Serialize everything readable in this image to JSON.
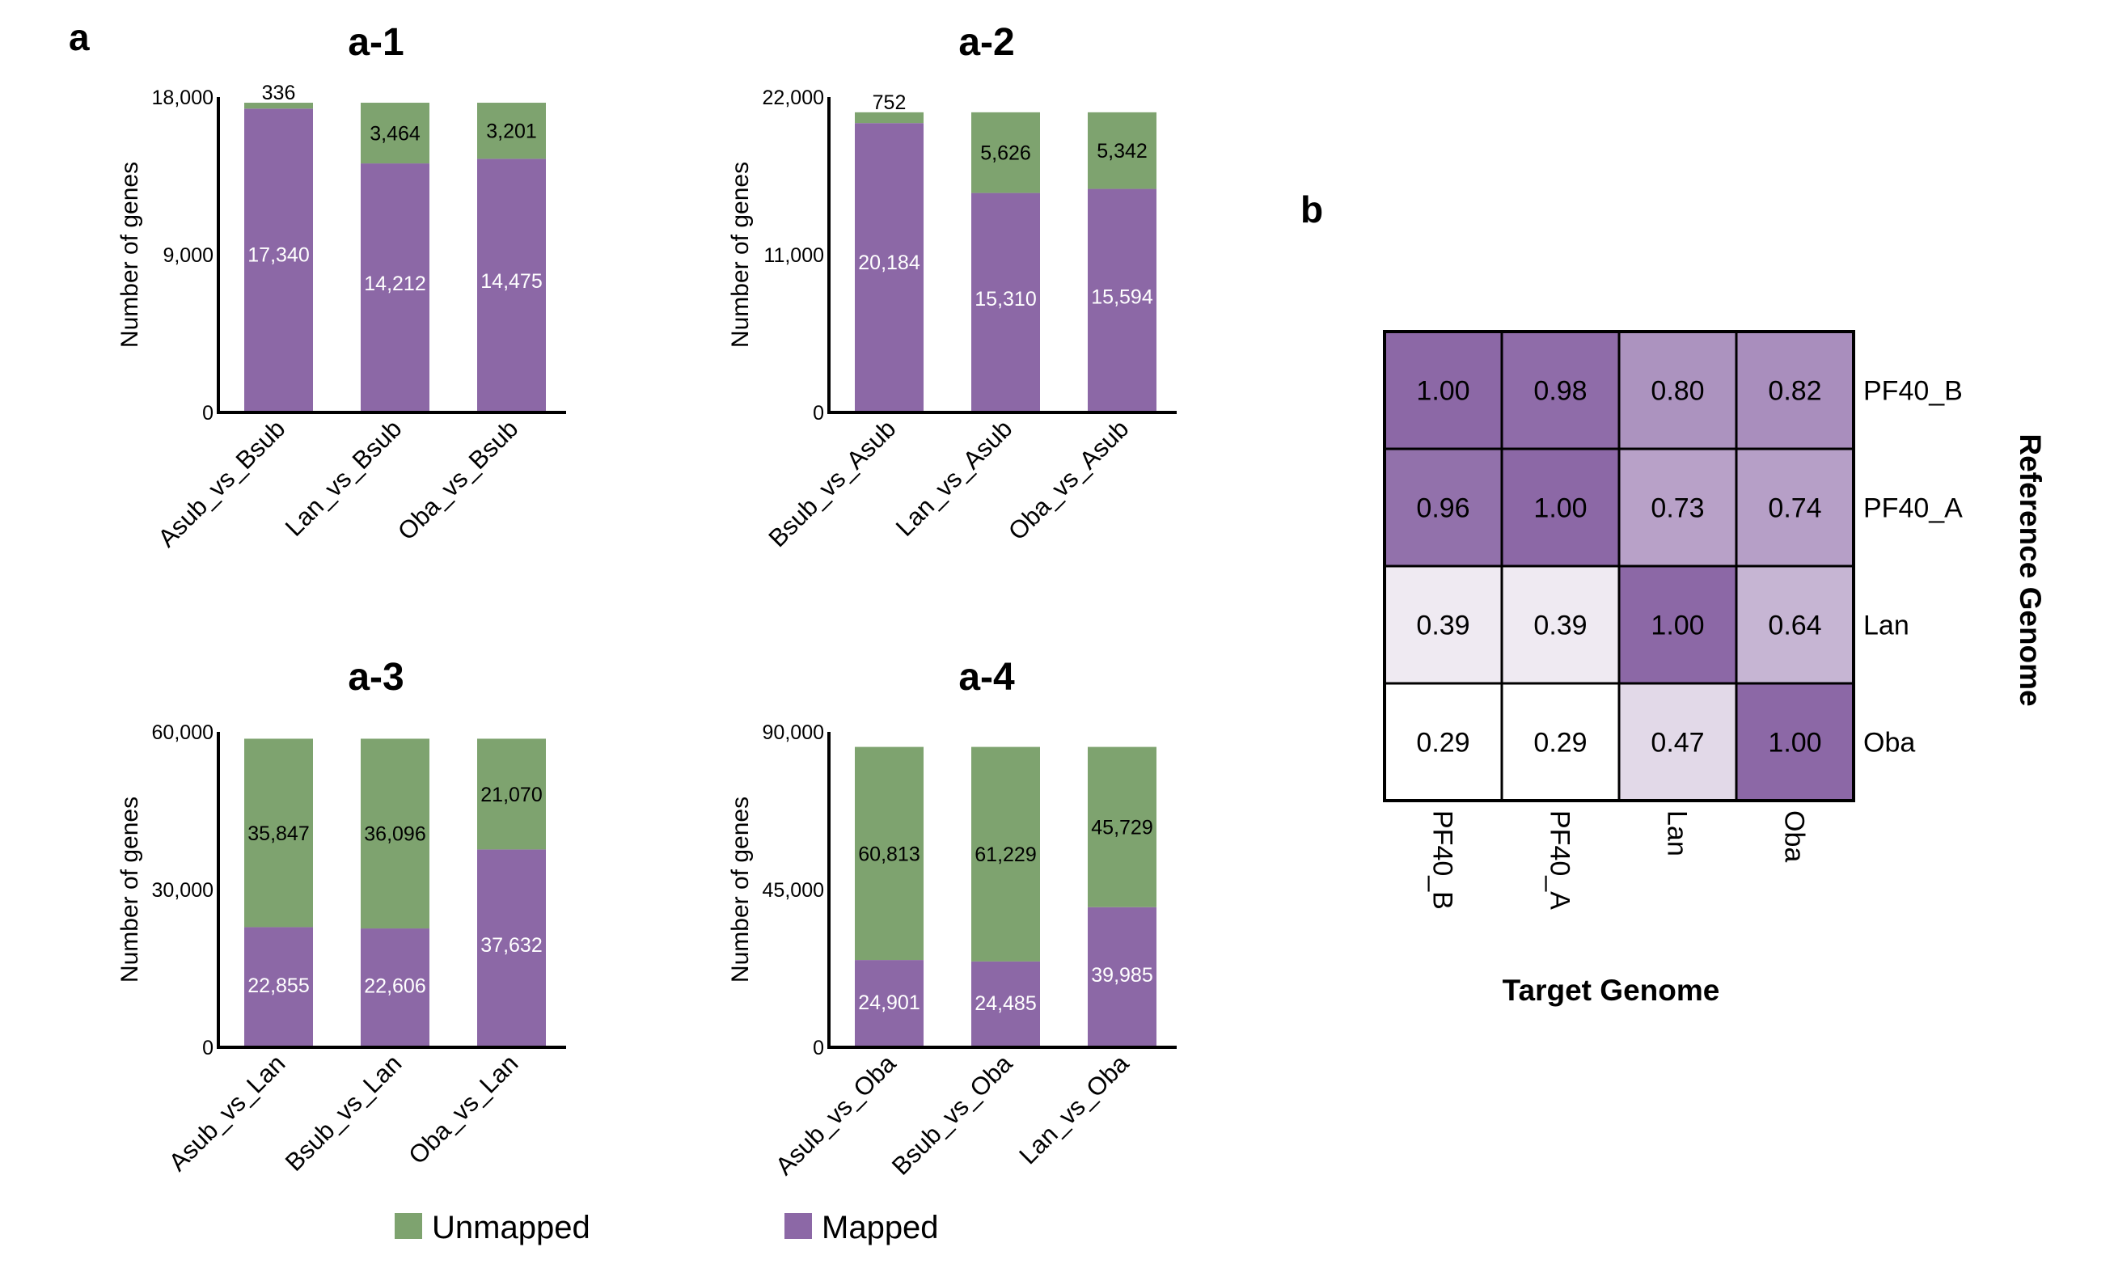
{
  "panel_labels": {
    "a": "a",
    "b": "b"
  },
  "legend": [
    {
      "name": "Unmapped",
      "color": "#7ea36f"
    },
    {
      "name": "Mapped",
      "color": "#8c68a6"
    }
  ],
  "chart_data": [
    {
      "type": "bar",
      "stacked": true,
      "title": "a-1",
      "ylabel": "Number of genes",
      "ylim": [
        0,
        18000
      ],
      "yticks": [
        "0",
        "9,000",
        "18,000"
      ],
      "categories": [
        "Asub_vs_Bsub",
        "Lan_vs_Bsub",
        "Oba_vs_Bsub"
      ],
      "series": [
        {
          "name": "Mapped",
          "values": [
            17340,
            14212,
            14475
          ],
          "labels": [
            "17,340",
            "14,212",
            "14,475"
          ]
        },
        {
          "name": "Unmapped",
          "values": [
            336,
            3464,
            3201
          ],
          "labels": [
            "336",
            "3,464",
            "3,201"
          ]
        }
      ]
    },
    {
      "type": "bar",
      "stacked": true,
      "title": "a-2",
      "ylabel": "Number of genes",
      "ylim": [
        0,
        22000
      ],
      "yticks": [
        "0",
        "11,000",
        "22,000"
      ],
      "categories": [
        "Bsub_vs_Asub",
        "Lan_vs_Asub",
        "Oba_vs_Asub"
      ],
      "series": [
        {
          "name": "Mapped",
          "values": [
            20184,
            15310,
            15594
          ],
          "labels": [
            "20,184",
            "15,310",
            "15,594"
          ]
        },
        {
          "name": "Unmapped",
          "values": [
            752,
            5626,
            5342
          ],
          "labels": [
            "752",
            "5,626",
            "5,342"
          ]
        }
      ]
    },
    {
      "type": "bar",
      "stacked": true,
      "title": "a-3",
      "ylabel": "Number of genes",
      "ylim": [
        0,
        60000
      ],
      "yticks": [
        "0",
        "30,000",
        "60,000"
      ],
      "categories": [
        "Asub_vs_Lan",
        "Bsub_vs_Lan",
        "Oba_vs_Lan"
      ],
      "series": [
        {
          "name": "Mapped",
          "values": [
            22855,
            22606,
            37632
          ],
          "labels": [
            "22,855",
            "22,606",
            "37,632"
          ]
        },
        {
          "name": "Unmapped",
          "values": [
            35847,
            36096,
            21070
          ],
          "labels": [
            "35,847",
            "36,096",
            "21,070"
          ]
        }
      ]
    },
    {
      "type": "bar",
      "stacked": true,
      "title": "a-4",
      "ylabel": "Number of genes",
      "ylim": [
        0,
        90000
      ],
      "yticks": [
        "0",
        "45,000",
        "90,000"
      ],
      "categories": [
        "Asub_vs_Oba",
        "Bsub_vs_Oba",
        "Lan_vs_Oba"
      ],
      "series": [
        {
          "name": "Mapped",
          "values": [
            24901,
            24485,
            39985
          ],
          "labels": [
            "24,901",
            "24,485",
            "39,985"
          ]
        },
        {
          "name": "Unmapped",
          "values": [
            60813,
            61229,
            45729
          ],
          "labels": [
            "60,813",
            "61,229",
            "45,729"
          ]
        }
      ]
    },
    {
      "type": "heatmap",
      "xlabel": "Target Genome",
      "ylabel": "Reference Genome",
      "x_categories": [
        "PF40_B",
        "PF40_A",
        "Lan",
        "Oba"
      ],
      "y_categories": [
        "PF40_B",
        "PF40_A",
        "Lan",
        "Oba"
      ],
      "values": [
        [
          1.0,
          0.98,
          0.8,
          0.82
        ],
        [
          0.96,
          1.0,
          0.73,
          0.74
        ],
        [
          0.39,
          0.39,
          1.0,
          0.64
        ],
        [
          0.29,
          0.29,
          0.47,
          1.0
        ]
      ],
      "labels": [
        [
          "1.00",
          "0.98",
          "0.80",
          "0.82"
        ],
        [
          "0.96",
          "1.00",
          "0.73",
          "0.74"
        ],
        [
          "0.39",
          "0.39",
          "1.00",
          "0.64"
        ],
        [
          "0.29",
          "0.29",
          "0.47",
          "1.00"
        ]
      ],
      "colorscale": [
        "#ffffff",
        "#8c68a6"
      ]
    }
  ]
}
